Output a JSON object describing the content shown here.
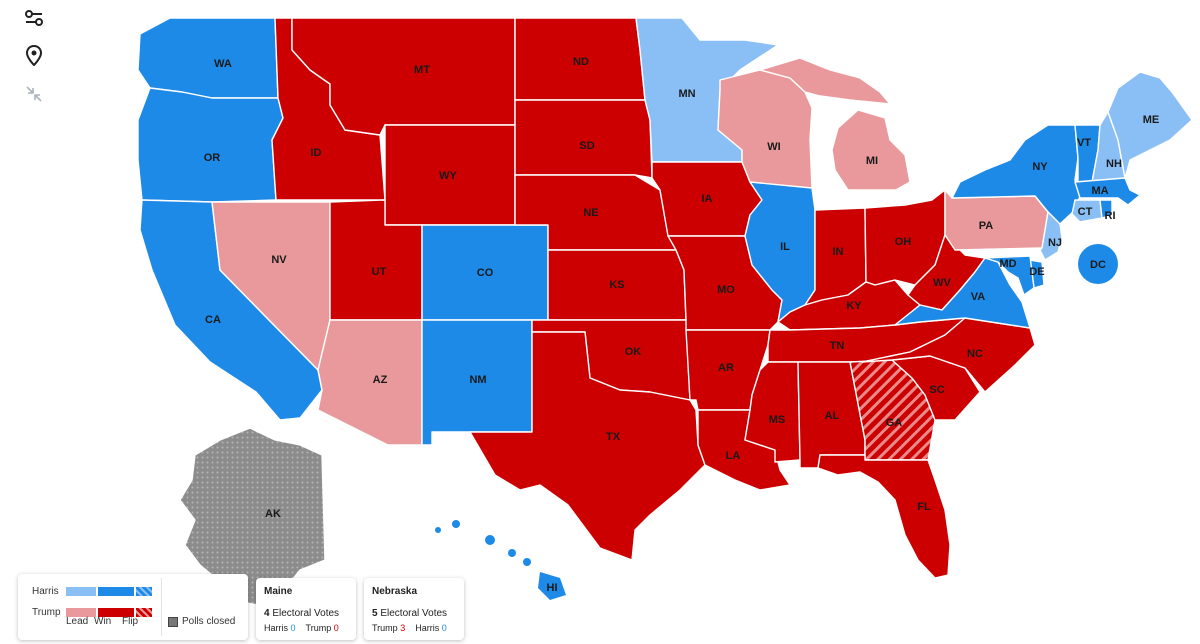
{
  "colors": {
    "harris_lead": "#89bff5",
    "harris_win": "#1e8ae8",
    "trump_lead": "#e9999b",
    "trump_win": "#cc0000",
    "polls_closed": "#8c8c8c",
    "white": "#ffffff"
  },
  "toolbar": [
    {
      "name": "filter-icon"
    },
    {
      "name": "location-pin-icon"
    },
    {
      "name": "collapse-icon"
    }
  ],
  "states": {
    "WA": {
      "label": "WA",
      "status": "harris_win"
    },
    "OR": {
      "label": "OR",
      "status": "harris_win"
    },
    "CA": {
      "label": "CA",
      "status": "harris_win"
    },
    "NV": {
      "label": "NV",
      "status": "trump_lead"
    },
    "ID": {
      "label": "ID",
      "status": "trump_win"
    },
    "MT": {
      "label": "MT",
      "status": "trump_win"
    },
    "WY": {
      "label": "WY",
      "status": "trump_win"
    },
    "UT": {
      "label": "UT",
      "status": "trump_win"
    },
    "AZ": {
      "label": "AZ",
      "status": "trump_lead"
    },
    "CO": {
      "label": "CO",
      "status": "harris_win"
    },
    "NM": {
      "label": "NM",
      "status": "harris_win"
    },
    "ND": {
      "label": "ND",
      "status": "trump_win"
    },
    "SD": {
      "label": "SD",
      "status": "trump_win"
    },
    "NE": {
      "label": "NE",
      "status": "trump_win"
    },
    "KS": {
      "label": "KS",
      "status": "trump_win"
    },
    "OK": {
      "label": "OK",
      "status": "trump_win"
    },
    "TX": {
      "label": "TX",
      "status": "trump_win"
    },
    "MN": {
      "label": "MN",
      "status": "harris_lead"
    },
    "IA": {
      "label": "IA",
      "status": "trump_win"
    },
    "MO": {
      "label": "MO",
      "status": "trump_win"
    },
    "AR": {
      "label": "AR",
      "status": "trump_win"
    },
    "LA": {
      "label": "LA",
      "status": "trump_win"
    },
    "WI": {
      "label": "WI",
      "status": "trump_lead"
    },
    "IL": {
      "label": "IL",
      "status": "harris_win"
    },
    "MI": {
      "label": "MI",
      "status": "trump_lead"
    },
    "IN": {
      "label": "IN",
      "status": "trump_win"
    },
    "OH": {
      "label": "OH",
      "status": "trump_win"
    },
    "KY": {
      "label": "KY",
      "status": "trump_win"
    },
    "TN": {
      "label": "TN",
      "status": "trump_win"
    },
    "MS": {
      "label": "MS",
      "status": "trump_win"
    },
    "AL": {
      "label": "AL",
      "status": "trump_win"
    },
    "GA": {
      "label": "GA",
      "status": "trump_flip"
    },
    "FL": {
      "label": "FL",
      "status": "trump_win"
    },
    "SC": {
      "label": "SC",
      "status": "trump_win"
    },
    "NC": {
      "label": "NC",
      "status": "trump_win"
    },
    "VA": {
      "label": "VA",
      "status": "harris_win"
    },
    "WV": {
      "label": "WV",
      "status": "trump_win"
    },
    "PA": {
      "label": "PA",
      "status": "trump_lead"
    },
    "NY": {
      "label": "NY",
      "status": "harris_win"
    },
    "ME": {
      "label": "ME",
      "status": "harris_lead"
    },
    "NH": {
      "label": "NH",
      "status": "harris_lead"
    },
    "VT": {
      "label": "VT",
      "status": "harris_win"
    },
    "MA": {
      "label": "MA",
      "status": "harris_win"
    },
    "RI": {
      "label": "RI",
      "status": "harris_win"
    },
    "CT": {
      "label": "CT",
      "status": "harris_lead"
    },
    "NJ": {
      "label": "NJ",
      "status": "harris_lead"
    },
    "DE": {
      "label": "DE",
      "status": "harris_win"
    },
    "MD": {
      "label": "MD",
      "status": "harris_win"
    },
    "DC": {
      "label": "DC",
      "status": "harris_win"
    },
    "AK": {
      "label": "AK",
      "status": "polls_closed"
    },
    "HI": {
      "label": "HI",
      "status": "harris_win"
    }
  },
  "legend": {
    "harris_label": "Harris",
    "trump_label": "Trump",
    "lead_label": "Lead",
    "win_label": "Win",
    "flip_label": "Flip",
    "polls_closed_label": "Polls closed"
  },
  "maine": {
    "title": "Maine",
    "ev_count": "4",
    "ev_label": "Electoral Votes",
    "harris_label": "Harris",
    "harris_value": "0",
    "trump_label": "Trump",
    "trump_value": "0"
  },
  "nebraska": {
    "title": "Nebraska",
    "ev_count": "5",
    "ev_label": "Electoral Votes",
    "trump_label": "Trump",
    "trump_value": "3",
    "harris_label": "Harris",
    "harris_value": "0"
  }
}
